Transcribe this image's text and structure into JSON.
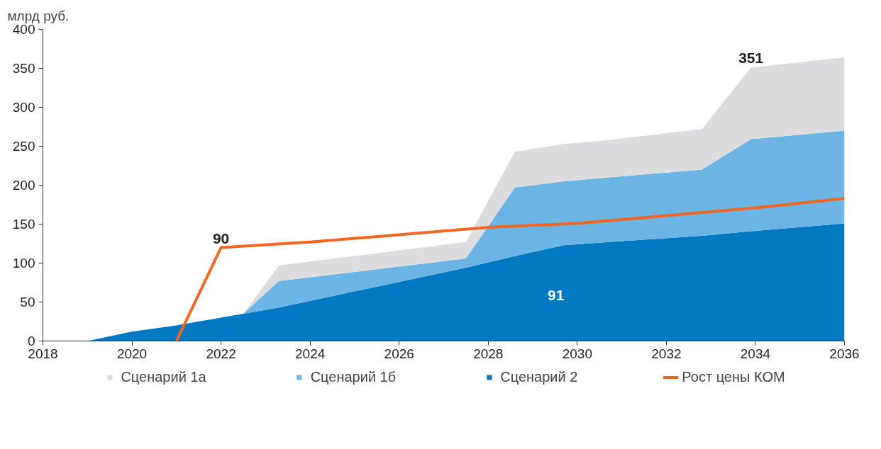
{
  "chart_data": {
    "type": "area",
    "stacked": true,
    "ylabel": "млрд руб.",
    "x": [
      2018,
      2019,
      2020,
      2021,
      2022.5,
      2023.3,
      2027.5,
      2028.6,
      2029.7,
      2030.7,
      2032.8,
      2033.9,
      2036
    ],
    "xlim": [
      2018,
      2036
    ],
    "xticks": [
      2018,
      2020,
      2022,
      2024,
      2026,
      2028,
      2030,
      2032,
      2034,
      2036
    ],
    "ylim": [
      0,
      400
    ],
    "yticks": [
      0,
      50,
      100,
      150,
      200,
      250,
      300,
      350,
      400
    ],
    "grid": false,
    "legend": "bottom",
    "series": [
      {
        "name": "Сценарий 2",
        "color": "#0079c2",
        "values": [
          0,
          0,
          12,
          20,
          35,
          43,
          94,
          109,
          123,
          127,
          135,
          141,
          151
        ]
      },
      {
        "name": "Сценарий 1б",
        "color": "#6cb4e4",
        "values": [
          0,
          0,
          0,
          0,
          0,
          34,
          12,
          88,
          82,
          83,
          85,
          118,
          119
        ]
      },
      {
        "name": "Сценарий 1а",
        "color": "#dcdcde",
        "values": [
          0,
          0,
          0,
          0,
          0,
          20,
          21,
          46,
          48,
          48,
          52,
          92,
          94
        ]
      },
      {
        "name": "Рост цены КОМ",
        "type": "line",
        "color": "#f26522",
        "x": [
          2021,
          2022,
          2024,
          2028,
          2030,
          2032,
          2034,
          2036
        ],
        "values": [
          0,
          120,
          127,
          146,
          151,
          161,
          171,
          183
        ]
      }
    ],
    "annotations": [
      {
        "text": "90",
        "x": 2022,
        "y": 120
      },
      {
        "text": "351",
        "x": 2033.9,
        "y": 351
      },
      "91"
    ]
  }
}
